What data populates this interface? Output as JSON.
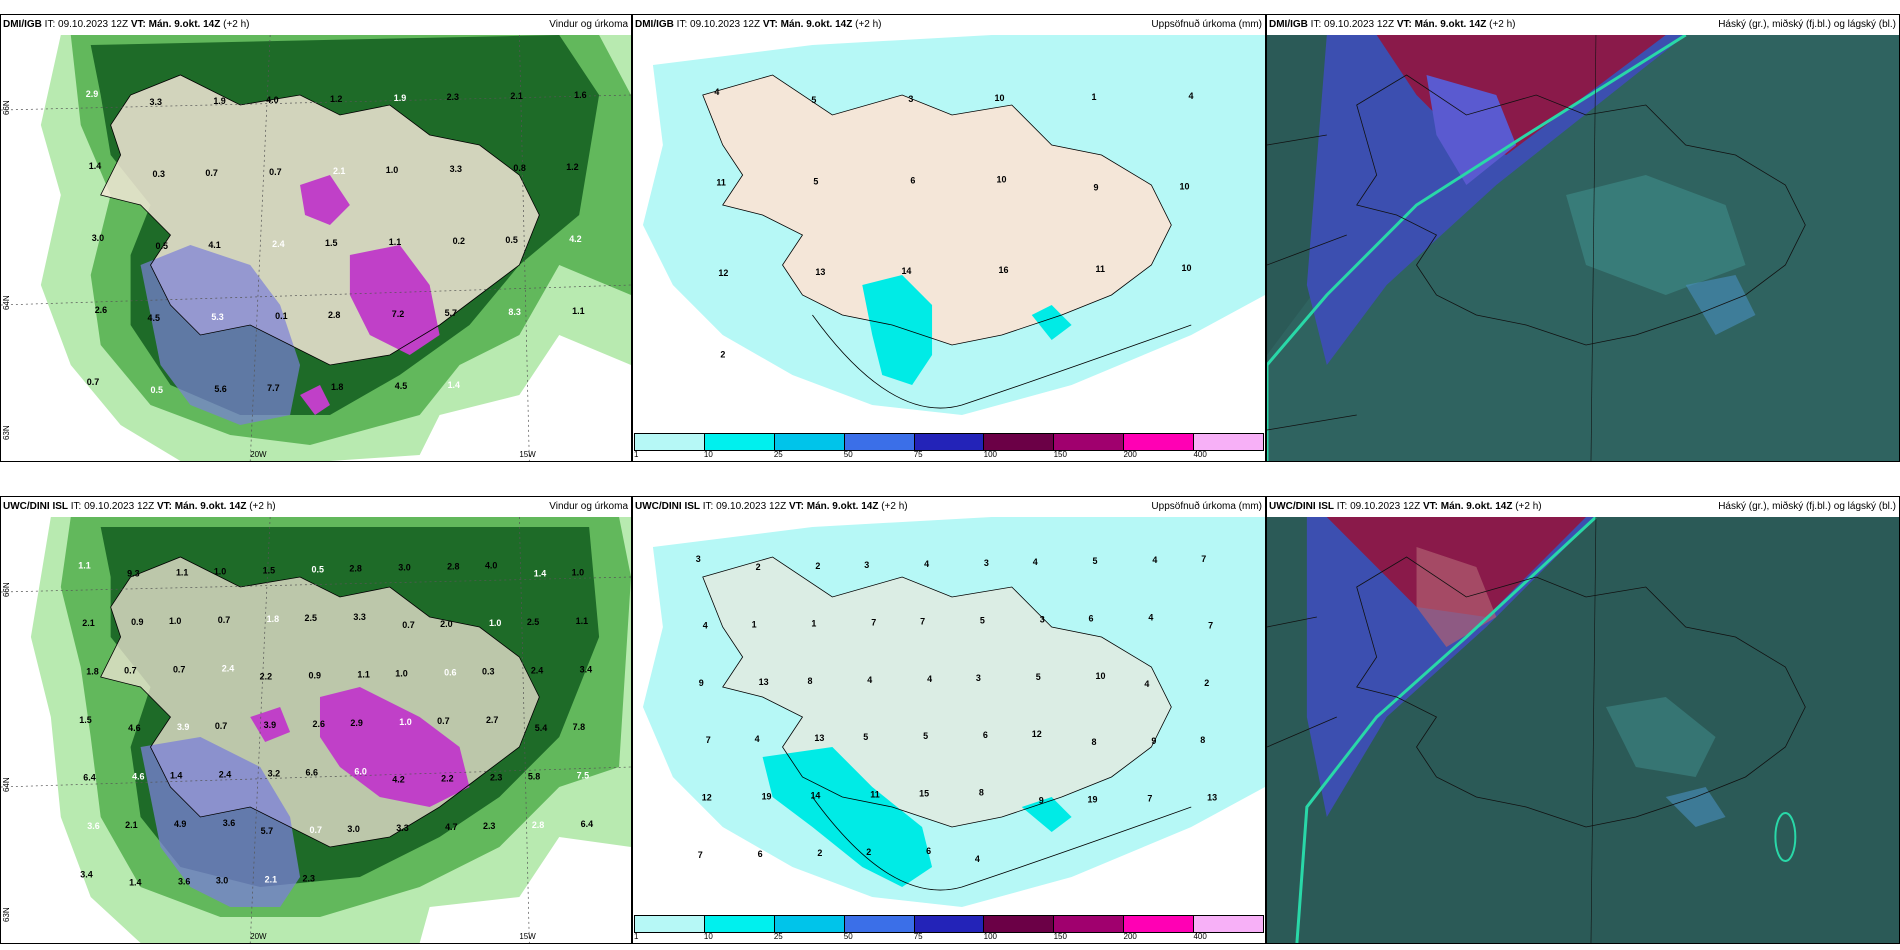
{
  "panels": [
    {
      "model": "DMI/IGB",
      "it_label": "IT:",
      "it_value": "09.10.2023 12Z",
      "vt_label": "VT:",
      "vt_value": "Mán. 9.okt. 14Z",
      "lead": "(+2 h)",
      "title": "Vindur og úrkoma",
      "labels": {
        "lon1": "20W",
        "lon2": "15W",
        "lat1": "66N",
        "lat2": "64N",
        "lat3": "63N"
      },
      "values": [
        "2.9",
        "3.3",
        "1.9",
        "4.0",
        "1.2",
        "1.9",
        "2.3",
        "2.1",
        "1.6",
        "1.4",
        "0.3",
        "0.7",
        "0.7",
        "2.1",
        "1.0",
        "3.3",
        "0.8",
        "1.2",
        "3.0",
        "0.5",
        "4.1",
        "2.4",
        "1.5",
        "1.1",
        "0.2",
        "0.5",
        "4.2",
        "2.6",
        "4.5",
        "5.3",
        "0.1",
        "2.8",
        "7.2",
        "5.7",
        "8.3",
        "1.1",
        "0.7",
        "0.5",
        "5.6",
        "7.7",
        "1.8",
        "4.5",
        "1.4"
      ]
    },
    {
      "model": "DMI/IGB",
      "it_label": "IT:",
      "it_value": "09.10.2023 12Z",
      "vt_label": "VT:",
      "vt_value": "Mán. 9.okt. 14Z",
      "lead": "(+2 h)",
      "title": "Uppsöfnuð úrkoma (mm)",
      "values": [
        "4",
        "5",
        "3",
        "10",
        "1",
        "4",
        "11",
        "5",
        "6",
        "10",
        "9",
        "10",
        "12",
        "13",
        "14",
        "16",
        "11",
        "10",
        "2"
      ],
      "colorbar": {
        "ticks": [
          "1",
          "10",
          "25",
          "50",
          "75",
          "100",
          "150",
          "200",
          "400"
        ],
        "colors": [
          "#b6f8f6",
          "#00f0ee",
          "#00c4ea",
          "#3b6fe8",
          "#2323b8",
          "#6b0046",
          "#a0006e",
          "#ff00b4",
          "#f7b0f7"
        ]
      }
    },
    {
      "model": "DMI/IGB",
      "it_label": "IT:",
      "it_value": "09.10.2023 12Z",
      "vt_label": "VT:",
      "vt_value": "Mán. 9.okt. 14Z",
      "lead": "(+2 h)",
      "title": "Háský (gr.), miðský (fj.bl.) og lágský (bl.)"
    },
    {
      "model": "UWC/DINI ISL",
      "it_label": "IT:",
      "it_value": "09.10.2023 12Z",
      "vt_label": "VT:",
      "vt_value": "Mán. 9.okt. 14Z",
      "lead": "(+2 h)",
      "title": "Vindur og úrkoma",
      "labels": {
        "lon1": "20W",
        "lon2": "15W",
        "lat1": "66N",
        "lat2": "64N",
        "lat3": "63N"
      },
      "values": [
        "1.1",
        "9.3",
        "1.1",
        "1.0",
        "1.5",
        "0.5",
        "2.8",
        "3.0",
        "2.8",
        "4.0",
        "1.4",
        "1.0",
        "2.1",
        "0.9",
        "1.0",
        "0.7",
        "1.8",
        "2.5",
        "3.3",
        "0.7",
        "2.0",
        "1.0",
        "2.5",
        "1.1",
        "1.8",
        "0.7",
        "0.7",
        "2.4",
        "2.2",
        "0.9",
        "1.1",
        "1.0",
        "0.6",
        "0.3",
        "2.4",
        "3.4",
        "1.5",
        "4.6",
        "3.9",
        "0.7",
        "3.9",
        "2.6",
        "2.9",
        "1.0",
        "0.7",
        "2.7",
        "5.4",
        "7.8",
        "6.4",
        "4.6",
        "1.4",
        "2.4",
        "3.2",
        "6.6",
        "6.0",
        "4.2",
        "2.2",
        "2.3",
        "5.8",
        "7.5",
        "3.6",
        "2.1",
        "4.9",
        "3.6",
        "5.7",
        "0.7",
        "3.0",
        "3.3",
        "4.7",
        "2.3",
        "2.8",
        "6.4",
        "3.4",
        "1.4",
        "3.6",
        "3.0",
        "2.1",
        "2.3"
      ]
    },
    {
      "model": "UWC/DINI ISL",
      "it_label": "IT:",
      "it_value": "09.10.2023 12Z",
      "vt_label": "VT:",
      "vt_value": "Mán. 9.okt. 14Z",
      "lead": "(+2 h)",
      "title": "Uppsöfnuð úrkoma (mm)",
      "values": [
        "3",
        "2",
        "2",
        "3",
        "4",
        "3",
        "4",
        "5",
        "4",
        "7",
        "4",
        "1",
        "1",
        "7",
        "7",
        "5",
        "3",
        "6",
        "4",
        "7",
        "9",
        "13",
        "8",
        "4",
        "4",
        "3",
        "5",
        "10",
        "4",
        "2",
        "7",
        "4",
        "13",
        "5",
        "5",
        "6",
        "12",
        "8",
        "9",
        "8",
        "12",
        "19",
        "14",
        "11",
        "15",
        "8",
        "9",
        "19",
        "7",
        "13",
        "7",
        "6",
        "2",
        "2",
        "6",
        "4"
      ],
      "colorbar": {
        "ticks": [
          "1",
          "10",
          "25",
          "50",
          "75",
          "100",
          "150",
          "200",
          "400"
        ],
        "colors": [
          "#b6f8f6",
          "#00f0ee",
          "#00c4ea",
          "#3b6fe8",
          "#2323b8",
          "#6b0046",
          "#a0006e",
          "#ff00b4",
          "#f7b0f7"
        ]
      }
    },
    {
      "model": "UWC/DINI ISL",
      "it_label": "IT:",
      "it_value": "09.10.2023 12Z",
      "vt_label": "VT:",
      "vt_value": "Mán. 9.okt. 14Z",
      "lead": "(+2 h)",
      "title": "Háský (gr.), miðský (fj.bl.) og lágský (bl.)"
    }
  ]
}
